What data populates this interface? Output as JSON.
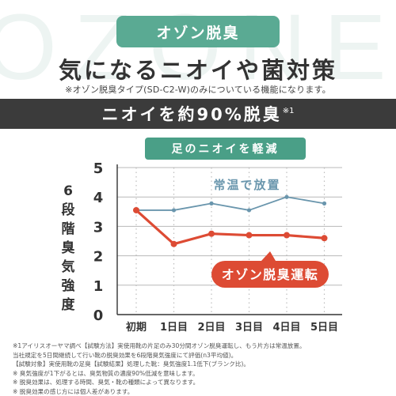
{
  "background_text": "OZONE",
  "badge": {
    "label": "オゾン脱臭"
  },
  "headline": "気になるニオイや菌対策",
  "note": "※オゾン脱臭タイプ(SD-C2-W)のみについている機能になります。",
  "claim": {
    "text": "ニオイを約90%脱臭",
    "footnote_mark": "※1"
  },
  "colors": {
    "accent": "#5aaa93",
    "normal_series": "#6a96ad",
    "ozone_series": "#dd4b34",
    "dark_bar": "#3b3b3b"
  },
  "chart_data": {
    "type": "line",
    "title": "足のニオイを軽減",
    "ylabel": "6段階臭気強度",
    "categories": [
      "初期",
      "1日目",
      "2日目",
      "3日目",
      "4日目",
      "5日目"
    ],
    "ylim": [
      0,
      5
    ],
    "yticks": [
      "0",
      "1",
      "2",
      "3",
      "4",
      "5"
    ],
    "grid": true,
    "series": [
      {
        "name": "常温で放置",
        "color": "#6a96ad",
        "values": [
          3.55,
          3.55,
          3.78,
          3.55,
          4.0,
          3.78
        ]
      },
      {
        "name": "オゾン脱臭運転",
        "color": "#dd4b34",
        "values": [
          3.55,
          2.4,
          2.75,
          2.7,
          2.7,
          2.6
        ]
      }
    ]
  },
  "footnotes": [
    "※1アイリスオーヤマ調べ【試験方法】実使用靴の片足のみ30分間オゾン脱臭運転し、もう片方は常温放置。",
    "当社規定を5日間継続して行い靴の脱臭効果を6段階臭気強度にて評価(n3平均値)。",
    "【試験対象】実使用靴の足臭【試験結果】処理した靴：臭気強度1.1低下(ブランク比)。",
    "※ 臭気強度が1下がるとは、臭気物質の濃度90%低減を意味します。",
    "※ 脱臭効果は、処理する時間、臭気・靴の種類によって異なります。",
    "※ 脱臭効果の感じ方には個人差があります。"
  ]
}
